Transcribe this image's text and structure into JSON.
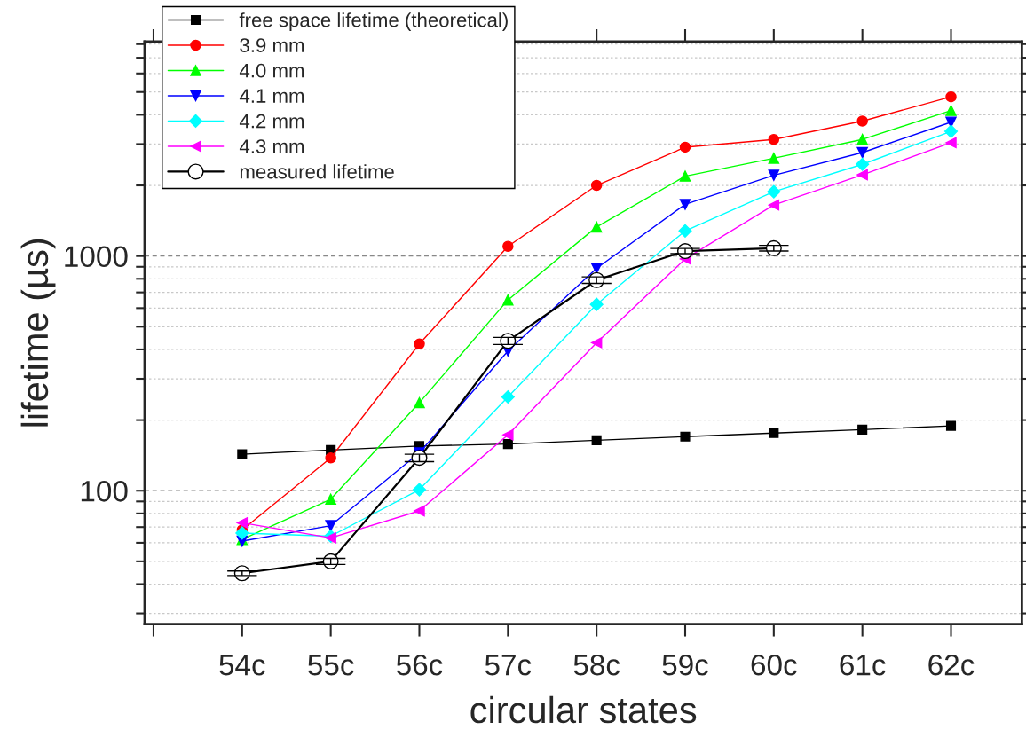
{
  "chart_data": {
    "type": "line",
    "xlabel": "circular states",
    "ylabel": "lifetime (µs)",
    "x": [
      54,
      55,
      56,
      57,
      58,
      59,
      60,
      61,
      62
    ],
    "xlim": [
      52.9,
      62.8
    ],
    "xticks": [
      {
        "value": 53,
        "label": null
      },
      {
        "value": 54,
        "label": "54c"
      },
      {
        "value": 55,
        "label": "55c"
      },
      {
        "value": 56,
        "label": "56c"
      },
      {
        "value": 57,
        "label": "57c"
      },
      {
        "value": 58,
        "label": "58c"
      },
      {
        "value": 59,
        "label": "59c"
      },
      {
        "value": 60,
        "label": "60c"
      },
      {
        "value": 61,
        "label": "61c"
      },
      {
        "value": 62,
        "label": "62c"
      }
    ],
    "log": "y",
    "ylim": [
      27,
      8200
    ],
    "yticks": [
      {
        "value": 30,
        "label": null
      },
      {
        "value": 40,
        "label": null
      },
      {
        "value": 50,
        "label": null
      },
      {
        "value": 60,
        "label": null
      },
      {
        "value": 70,
        "label": null
      },
      {
        "value": 80,
        "label": null
      },
      {
        "value": 90,
        "label": null
      },
      100,
      {
        "value": 200,
        "label": null
      },
      {
        "value": 300,
        "label": null
      },
      {
        "value": 400,
        "label": null
      },
      {
        "value": 500,
        "label": null
      },
      {
        "value": 600,
        "label": null
      },
      {
        "value": 700,
        "label": null
      },
      {
        "value": 800,
        "label": null
      },
      {
        "value": 900,
        "label": null
      },
      1000,
      {
        "value": 2000,
        "label": null
      },
      {
        "value": 3000,
        "label": null
      },
      {
        "value": 4000,
        "label": null
      },
      {
        "value": 5000,
        "label": null
      },
      {
        "value": 6000,
        "label": null
      },
      {
        "value": 7000,
        "label": null
      },
      {
        "value": 8000,
        "label": null
      }
    ],
    "grid": "y",
    "legend": "top left",
    "line_style": "solid",
    "series": [
      {
        "name": "free space lifetime (theoretical)",
        "color": "#000000",
        "marker": "square",
        "values": [
          143,
          149,
          155,
          158,
          164,
          170,
          176,
          182,
          189
        ]
      },
      {
        "name": "3.9 mm",
        "color": "#ff0000",
        "marker": "circle",
        "values": [
          68,
          138,
          422,
          1100,
          2000,
          2910,
          3140,
          3760,
          4770
        ]
      },
      {
        "name": "4.0 mm",
        "color": "#00ff00",
        "marker": "triangle",
        "values": [
          62,
          92,
          237,
          650,
          1330,
          2190,
          2610,
          3140,
          4170
        ]
      },
      {
        "name": "4.1 mm",
        "color": "#0000ff",
        "marker": "triangle-down",
        "values": [
          61,
          71,
          145,
          394,
          887,
          1660,
          2210,
          2760,
          3720
        ]
      },
      {
        "name": "4.2 mm",
        "color": "#00ffff",
        "marker": "diamond",
        "values": [
          66,
          64,
          101,
          251,
          622,
          1280,
          1880,
          2460,
          3400
        ]
      },
      {
        "name": "4.3 mm",
        "color": "#ff00ff",
        "marker": "triangle-left",
        "values": [
          73,
          63,
          82,
          173,
          427,
          972,
          1650,
          2220,
          3040
        ]
      },
      {
        "name": "measured lifetime",
        "color": "#000000",
        "marker": "circle-open",
        "values": [
          44.5,
          50,
          138,
          435,
          790,
          1050,
          1080,
          null,
          null
        ],
        "errors": [
          1,
          1.5,
          5,
          15,
          25,
          27,
          30,
          null,
          null
        ]
      }
    ]
  }
}
